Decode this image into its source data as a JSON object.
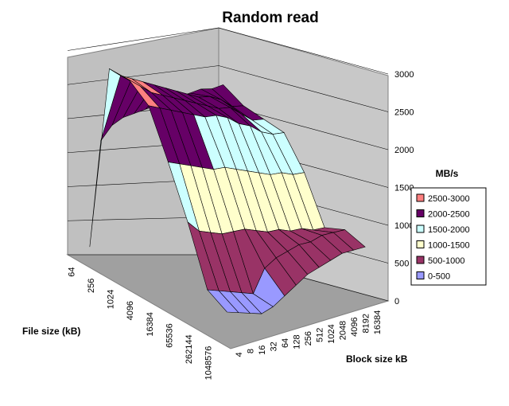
{
  "chart_data": {
    "type": "surface3d",
    "title": "Random read",
    "zlabel": "MB/s",
    "xlabel": "File size (kB)",
    "ylabel": "Block size kB",
    "zlim": [
      0,
      3000
    ],
    "z_ticks": [
      "0",
      "500",
      "1000",
      "1500",
      "2000",
      "2500",
      "3000"
    ],
    "file_size_ticks": [
      "64",
      "256",
      "1024",
      "4096",
      "16384",
      "65536",
      "262144",
      "1048576"
    ],
    "block_size_ticks": [
      "4",
      "8",
      "16",
      "32",
      "64",
      "128",
      "256",
      "512",
      "1024",
      "2048",
      "4096",
      "8192",
      "16384"
    ],
    "legend": {
      "placement": "right",
      "entries": [
        {
          "label": "2500-3000",
          "color": "#ff8080"
        },
        {
          "label": "2000-2500",
          "color": "#660066"
        },
        {
          "label": "1500-2000",
          "color": "#ccffff"
        },
        {
          "label": "1000-1500",
          "color": "#ffffcc"
        },
        {
          "label": "500-1000",
          "color": "#993366"
        },
        {
          "label": "0-500",
          "color": "#9999ff"
        }
      ]
    },
    "grid": true,
    "series_by_file_size": [
      {
        "file_size": "64",
        "values": [
          200,
          1600,
          1800,
          1900,
          1950,
          2000,
          2050,
          2100,
          2150,
          2200,
          2250,
          2250,
          2300
        ]
      },
      {
        "file_size": "256",
        "values": [
          2700,
          2600,
          2550,
          2500,
          2450,
          2400,
          2350,
          2300,
          2250,
          2250,
          2200,
          2100,
          2100
        ]
      },
      {
        "file_size": "1024",
        "values": [
          2700,
          2600,
          2500,
          2450,
          2400,
          2350,
          2300,
          2250,
          2200,
          2200,
          2100,
          2000,
          2000
        ]
      },
      {
        "file_size": "4096",
        "values": [
          2500,
          2450,
          2400,
          2350,
          2300,
          2250,
          2250,
          2200,
          2100,
          2050,
          1950,
          1900,
          1900
        ]
      },
      {
        "file_size": "16384",
        "values": [
          1900,
          1850,
          1800,
          1750,
          1700,
          1700,
          1650,
          1600,
          1550,
          1500,
          1500,
          1450,
          1450
        ]
      },
      {
        "file_size": "65536",
        "values": [
          1250,
          1100,
          1050,
          1000,
          1000,
          1000,
          950,
          900,
          900,
          850,
          850,
          800,
          800
        ]
      },
      {
        "file_size": "262144",
        "values": [
          500,
          450,
          400,
          350,
          300,
          600,
          700,
          750,
          800,
          800,
          850,
          850,
          850
        ]
      },
      {
        "file_size": "1048576",
        "values": [
          350,
          300,
          250,
          200,
          250,
          350,
          450,
          550,
          600,
          650,
          700,
          700,
          700
        ]
      }
    ]
  }
}
